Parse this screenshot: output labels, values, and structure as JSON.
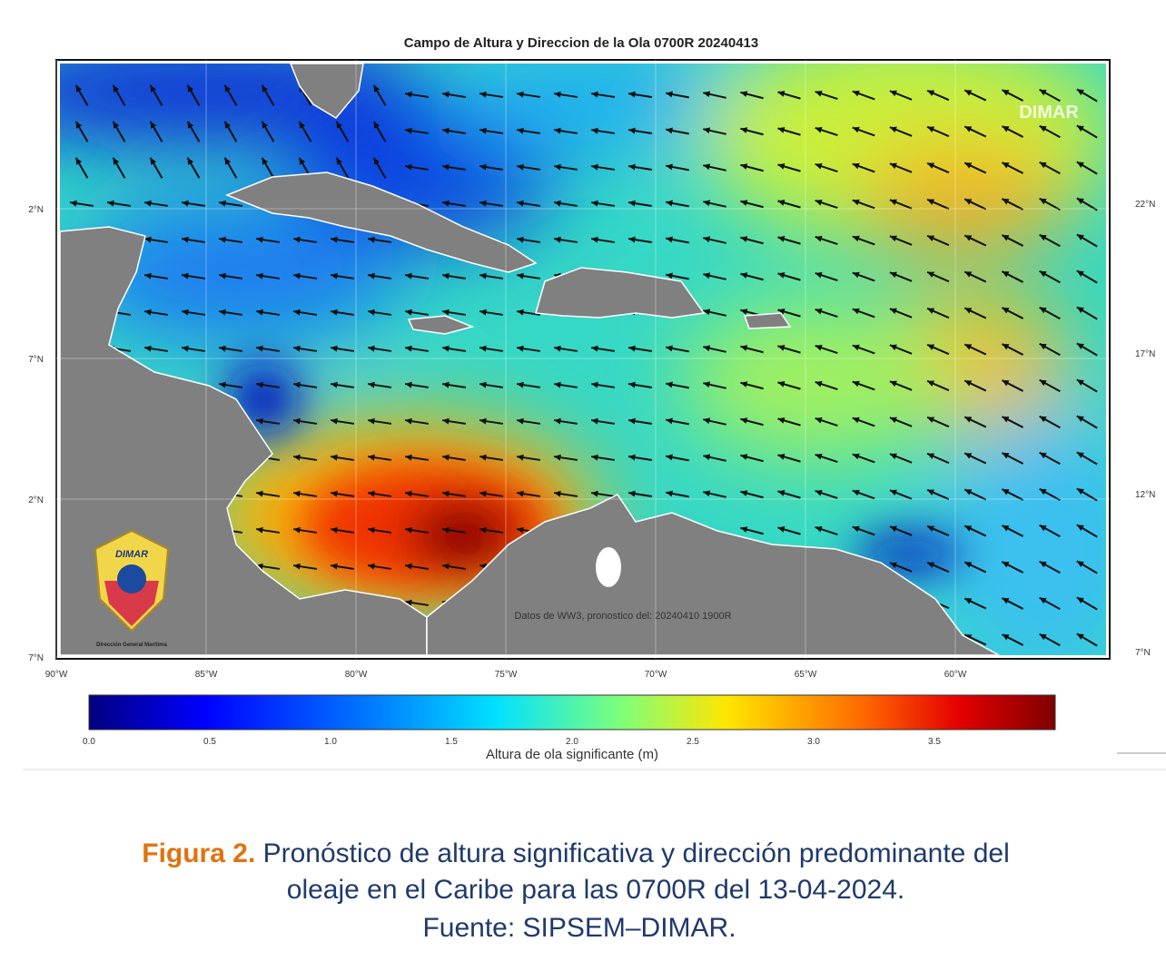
{
  "map": {
    "title": "Campo de Altura y Direccion de la Ola 0700R 20240413",
    "watermark": "DIMAR",
    "source_note": "Datos de WW3, pronostico del: 20240410 1900R",
    "logo": {
      "name": "DIMAR",
      "org": "Dirección General Marítima"
    },
    "lon_ticks": [
      "90°W",
      "85°W",
      "80°W",
      "75°W",
      "70°W",
      "65°W",
      "60°W"
    ],
    "lat_ticks_left": [
      "2°N",
      "7°N",
      "2°N",
      "7°N"
    ],
    "lat_ticks_right": [
      "22°N",
      "17°N",
      "12°N",
      "7°N"
    ]
  },
  "colorbar": {
    "ticks": [
      "0.0",
      "0.5",
      "1.0",
      "1.5",
      "2.0",
      "2.5",
      "3.0",
      "3.5"
    ],
    "label": "Altura de ola significante (m)"
  },
  "caption": {
    "lead": "Figura 2.",
    "line1": "Pronóstico de  altura significativa y dirección predominante del",
    "line2": "oleaje en el  Caribe para las 0700R del 13-04-2024.",
    "line3": "Fuente: SIPSEM–DIMAR."
  }
}
